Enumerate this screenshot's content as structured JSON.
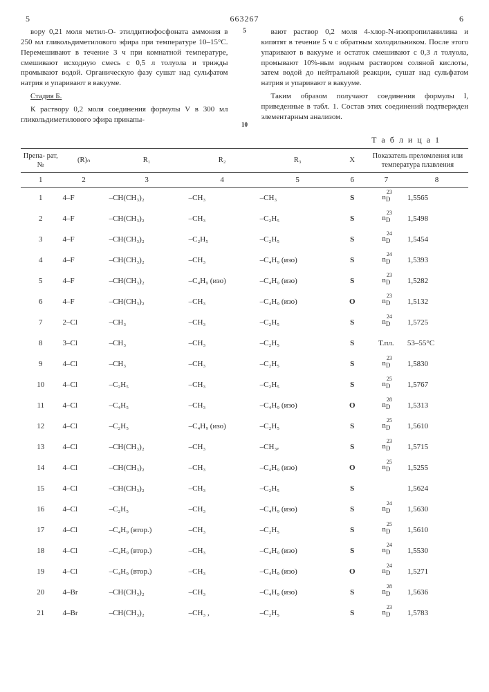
{
  "header": {
    "leftPage": "5",
    "docNum": "663267",
    "rightPage": "6"
  },
  "leftCol": {
    "p1": "вору 0,21 моля метил-О- этилдитиофосфоната аммония в 250 мл гликольдиметилового эфира при температуре 10–15°C. Перемешивают в течение 3 ч при комнатной температуре, смешивают исходную смесь с 0,5 л толуола и трижды промывают водой. Органическую фазу сушат над сульфатом натрия и упаривают в вакууме.",
    "stage": "Стадия Б.",
    "p2": "К раствору 0,2 моля соединения формулы V в 300 мл гликольдиметилового эфира прикапы-"
  },
  "rightCol": {
    "p1": "вают раствор 0,2 моля 4-хлор-N-изопропиланилина и кипятят в течение 5 ч с обратным холодильником. После этого упаривают в вакууме и остаток смешивают с 0,3 л толуола, промывают 10%-ным водным раствором соляной кислоты, затем водой до нейтральной реакции, сушат над сульфатом натрия и упаривают в вакууме.",
    "p2": "Таким образом получают соединения формулы I, приведенные в табл. 1. Состав этих соединений подтвержден элементарным анализом."
  },
  "gutter": {
    "a": "5",
    "b": "10"
  },
  "tableTitle": "Т а б л и ц а 1",
  "headers": {
    "h1": "Препа-\nрат, №",
    "h2": "(R)ₙ",
    "h3": "R₁",
    "h4": "R₂",
    "h5": "R₃",
    "h6": "X",
    "h78": "Показатель преломления\nили температура плавления",
    "n1": "1",
    "n2": "2",
    "n3": "3",
    "n4": "4",
    "n5": "5",
    "n6": "6",
    "n7": "7",
    "n8": "8"
  },
  "rows": [
    {
      "n": "1",
      "rn": "4–F",
      "r1": "–CH(CH₃)₂",
      "r2": "–CH₃",
      "r3": "–CH₃",
      "x": "S",
      "nd": "n_D^23",
      "val": "1,5565"
    },
    {
      "n": "2",
      "rn": "4–F",
      "r1": "–CH(CH₃)₂",
      "r2": "–CH₃",
      "r3": "–C₂H₅",
      "x": "S",
      "nd": "n_D^23",
      "val": "1,5498"
    },
    {
      "n": "3",
      "rn": "4–F",
      "r1": "–CH(CH₃)₂",
      "r2": "–C₂H₅",
      "r3": "–C₂H₅",
      "x": "S",
      "nd": "n_D^24",
      "val": "1,5454"
    },
    {
      "n": "4",
      "rn": "4–F",
      "r1": "–CH(CH₃)₂",
      "r2": "–CH₃",
      "r3": "–C₄H₉ (изо)",
      "x": "S",
      "nd": "n_D^24",
      "val": "1,5393"
    },
    {
      "n": "5",
      "rn": "4–F",
      "r1": "–CH(CH₃)₂",
      "r2": "–C₄H₉ (изо)",
      "r3": "–C₄H₉ (изо)",
      "x": "S",
      "nd": "n_D^23",
      "val": "1,5282"
    },
    {
      "n": "6",
      "rn": "4–F",
      "r1": "–CH(CH₃)₂",
      "r2": "–CH₃",
      "r3": "–C₄H₉ (изо)",
      "x": "O",
      "nd": "n_D^23",
      "val": "1,5132"
    },
    {
      "n": "7",
      "rn": "2–Cl",
      "r1": "–CH₃",
      "r2": "–CH₃",
      "r3": "–C₂H₅",
      "x": "S",
      "nd": "n_D^24",
      "val": "1,5725"
    },
    {
      "n": "8",
      "rn": "3–Cl",
      "r1": "–CH₃",
      "r2": "–CH₃",
      "r3": "–C₂H₅",
      "x": "S",
      "nd": "Т.пл.",
      "val": "53–55°C"
    },
    {
      "n": "9",
      "rn": "4–Cl",
      "r1": "–CH₃",
      "r2": "–CH₃",
      "r3": "–C₂H₅",
      "x": "S",
      "nd": "n_D^23",
      "val": "1,5830"
    },
    {
      "n": "10",
      "rn": "4–Cl",
      "r1": "–C₂H₅",
      "r2": "–CH₃",
      "r3": "–C₂H₅",
      "x": "S",
      "nd": "n_D^25",
      "val": "1,5767"
    },
    {
      "n": "11",
      "rn": "4–Cl",
      "r1": "–C₄H₅",
      "r2": "–CH₃",
      "r3": "–C₄H₉ (изо)",
      "x": "O",
      "nd": "n_D^28",
      "val": "1,5313"
    },
    {
      "n": "12",
      "rn": "4–Cl",
      "r1": "–C₂H₅",
      "r2": "–C₄H₉ (изо)",
      "r3": "–C₂H₅",
      "x": "S",
      "nd": "n_D^25",
      "val": "1,5610"
    },
    {
      "n": "13",
      "rn": "4–Cl",
      "r1": "–CH(CH₃)₂",
      "r2": "–CH₃",
      "r3": "–CH₃ₑ",
      "x": "S",
      "nd": "n_D^23",
      "val": "1,5715"
    },
    {
      "n": "14",
      "rn": "4–Cl",
      "r1": "–CH(CH₃)₂",
      "r2": "–CH₃",
      "r3": "–C₄H₉ (изо)",
      "x": "O",
      "nd": "n_D^25",
      "val": "1,5255"
    },
    {
      "n": "15",
      "rn": "4–Cl",
      "r1": "–CH(CH₃)₂",
      "r2": "–CH₃",
      "r3": "–C₂H₅",
      "x": "S",
      "nd": "",
      "val": "1,5624"
    },
    {
      "n": "16",
      "rn": "4–Cl",
      "r1": "–C₂H₅",
      "r2": "–CH₃",
      "r3": "–C₄H₉ (изо)",
      "x": "S",
      "nd": "n_D^24",
      "val": "1,5630"
    },
    {
      "n": "17",
      "rn": "4–Cl",
      "r1": "–C₄H₉ (втор.)",
      "r2": "–CH₃",
      "r3": "–C₂H₅",
      "x": "S",
      "nd": "n_D^25",
      "val": "1,5610"
    },
    {
      "n": "18",
      "rn": "4–Cl",
      "r1": "–C₄H₉ (втор.)",
      "r2": "–CH₃",
      "r3": "–C₄H₉ (изо)",
      "x": "S",
      "nd": "n_D^24",
      "val": "1,5530"
    },
    {
      "n": "19",
      "rn": "4–Cl",
      "r1": "–C₄H₉ (втор.)",
      "r2": "–CH₃",
      "r3": "–C₄H₉ (изо)",
      "x": "O",
      "nd": "n_D^24",
      "val": "1,5271"
    },
    {
      "n": "20",
      "rn": "4–Br",
      "r1": "–CH(CH₃)₂",
      "r2": "–CH₃",
      "r3": "–C₄H₉ (изо)",
      "x": "S",
      "nd": "n_D^28",
      "val": "1,5636"
    },
    {
      "n": "21",
      "rn": "4–Br",
      "r1": "–CH(CH₃)₂",
      "r2": "–CH₃ ,",
      "r3": "–C₂H₅",
      "x": "S",
      "nd": "n_D^23",
      "val": "1,5783"
    }
  ]
}
